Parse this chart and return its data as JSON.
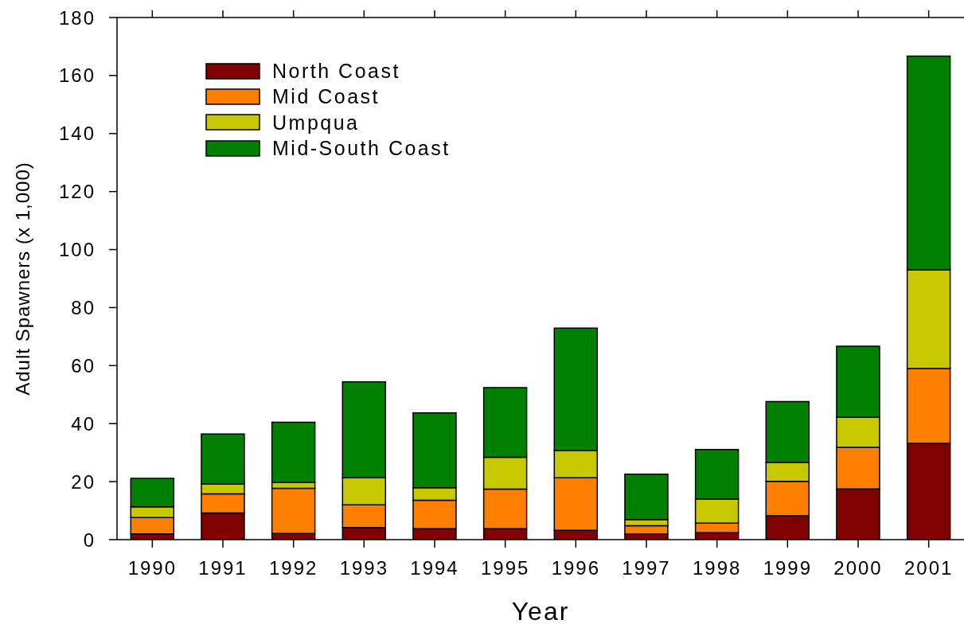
{
  "chart_data": {
    "type": "bar",
    "stacked": true,
    "xlabel": "Year",
    "ylabel": "Adult Spawners (x 1,000)",
    "categories": [
      "1990",
      "1991",
      "1992",
      "1993",
      "1994",
      "1995",
      "1996",
      "1997",
      "1998",
      "1999",
      "2000",
      "2001"
    ],
    "series": [
      {
        "name": "North Coast",
        "color": "#7f0000",
        "values": [
          2.0,
          9.2,
          2.1,
          4.2,
          3.8,
          3.8,
          3.2,
          1.9,
          2.4,
          8.2,
          17.5,
          33.2
        ]
      },
      {
        "name": "Mid Coast",
        "color": "#ff8000",
        "values": [
          5.6,
          6.6,
          15.6,
          7.8,
          9.8,
          13.6,
          18.1,
          2.9,
          3.3,
          11.9,
          14.3,
          25.8
        ]
      },
      {
        "name": "Umpqua",
        "color": "#c8c800",
        "values": [
          3.7,
          3.4,
          2.0,
          9.3,
          4.3,
          11.0,
          9.4,
          2.1,
          8.3,
          6.5,
          10.4,
          34.0
        ]
      },
      {
        "name": "Mid-South Coast",
        "color": "#008000",
        "values": [
          9.8,
          17.2,
          20.8,
          33.1,
          25.8,
          24.0,
          42.2,
          15.7,
          17.1,
          21.0,
          24.5,
          73.7
        ]
      }
    ],
    "ylim": [
      0,
      180
    ],
    "yticks": [
      0,
      20,
      40,
      60,
      80,
      100,
      120,
      140,
      160,
      180
    ],
    "grid": false,
    "legend": "top left"
  }
}
